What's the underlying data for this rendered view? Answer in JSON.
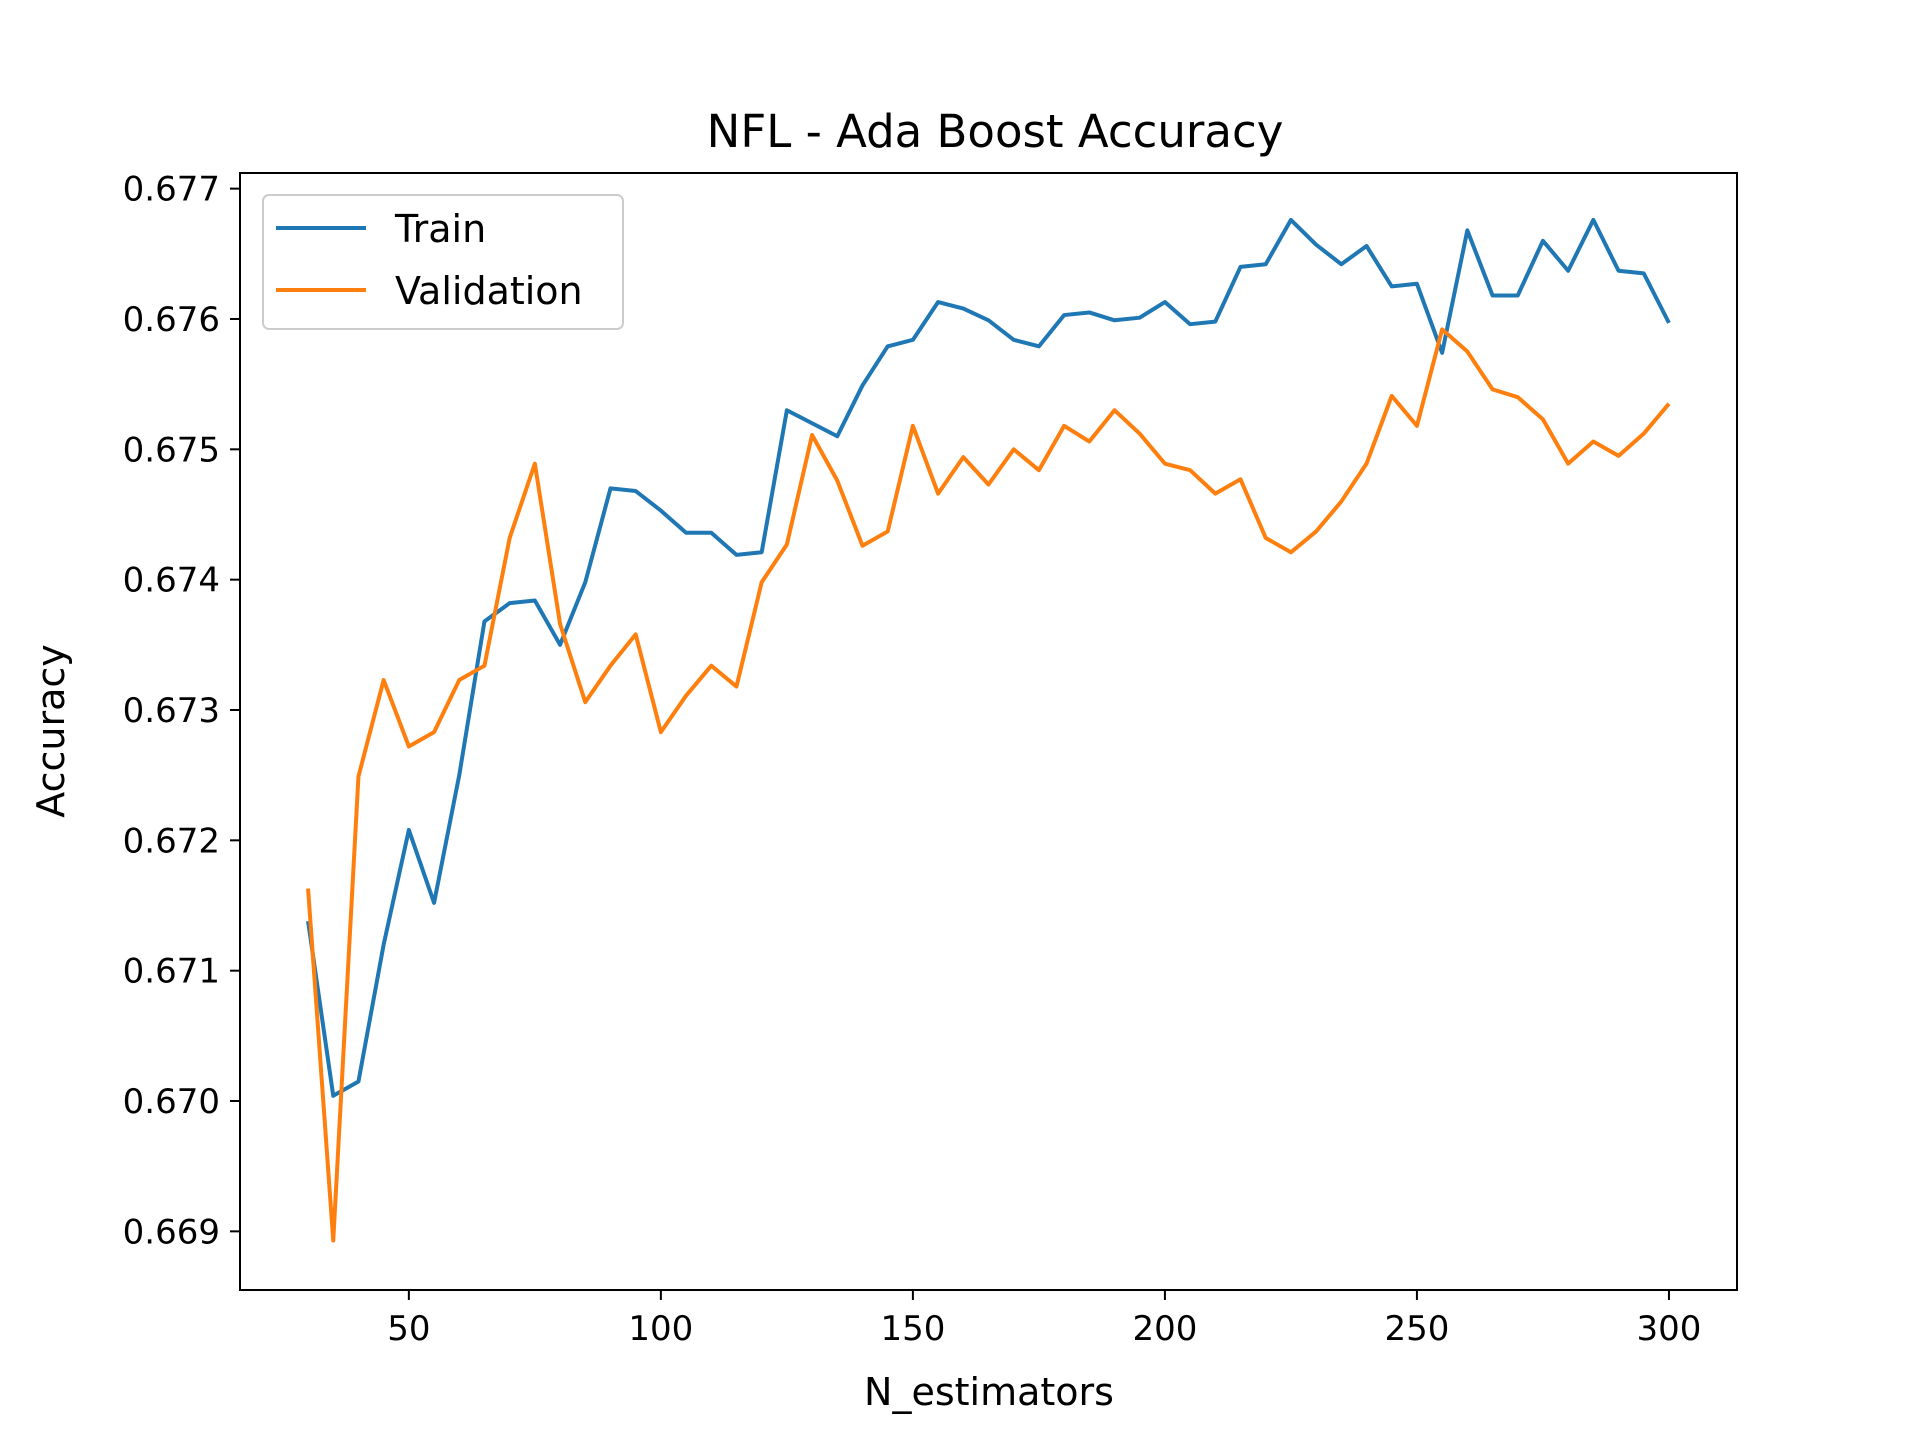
{
  "chart_data": {
    "type": "line",
    "title": "NFL - Ada Boost Accuracy",
    "xlabel": "N_estimators",
    "ylabel": "Accuracy",
    "xlim": [
      16.5,
      313.5
    ],
    "ylim": [
      0.66855,
      0.67712
    ],
    "xticks": [
      50,
      100,
      150,
      200,
      250,
      300
    ],
    "xtick_labels": [
      "50",
      "100",
      "150",
      "200",
      "250",
      "300"
    ],
    "yticks": [
      0.669,
      0.67,
      0.671,
      0.672,
      0.673,
      0.674,
      0.675,
      0.676,
      0.677
    ],
    "ytick_labels": [
      "0.669",
      "0.670",
      "0.671",
      "0.672",
      "0.673",
      "0.674",
      "0.675",
      "0.676",
      "0.677"
    ],
    "grid": false,
    "legend_position": "top-left",
    "x": [
      30,
      35,
      40,
      45,
      50,
      55,
      60,
      65,
      70,
      75,
      80,
      85,
      90,
      95,
      100,
      105,
      110,
      115,
      120,
      125,
      130,
      135,
      140,
      145,
      150,
      155,
      160,
      165,
      170,
      175,
      180,
      185,
      190,
      195,
      200,
      205,
      210,
      215,
      220,
      225,
      230,
      235,
      240,
      245,
      250,
      255,
      260,
      265,
      270,
      275,
      280,
      285,
      290,
      295,
      300
    ],
    "series": [
      {
        "name": "Train",
        "color": "#1f77b4",
        "values": [
          0.67138,
          0.67004,
          0.67015,
          0.6712,
          0.67208,
          0.67152,
          0.6725,
          0.67368,
          0.67382,
          0.67384,
          0.6735,
          0.67398,
          0.6747,
          0.67468,
          0.67453,
          0.67436,
          0.67436,
          0.67419,
          0.67421,
          0.6753,
          0.6752,
          0.6751,
          0.67549,
          0.67579,
          0.67584,
          0.67613,
          0.67608,
          0.67599,
          0.67584,
          0.67579,
          0.67603,
          0.67605,
          0.67599,
          0.67601,
          0.67613,
          0.67596,
          0.67598,
          0.6764,
          0.67642,
          0.67676,
          0.67657,
          0.67642,
          0.67656,
          0.67625,
          0.67627,
          0.67574,
          0.67668,
          0.67618,
          0.67618,
          0.6766,
          0.67637,
          0.67676,
          0.67637,
          0.67635,
          0.67597
        ]
      },
      {
        "name": "Validation",
        "color": "#ff7f0e",
        "values": [
          0.67163,
          0.66893,
          0.67249,
          0.67323,
          0.67272,
          0.67283,
          0.67323,
          0.67334,
          0.67432,
          0.67489,
          0.67366,
          0.67306,
          0.67334,
          0.67358,
          0.67283,
          0.67311,
          0.67334,
          0.67318,
          0.67398,
          0.67427,
          0.67511,
          0.67476,
          0.67426,
          0.67437,
          0.67518,
          0.67466,
          0.67494,
          0.67473,
          0.675,
          0.67484,
          0.67518,
          0.67506,
          0.6753,
          0.67512,
          0.67489,
          0.67484,
          0.67466,
          0.67477,
          0.67432,
          0.67421,
          0.67437,
          0.6746,
          0.67489,
          0.67541,
          0.67518,
          0.67592,
          0.67575,
          0.67546,
          0.6754,
          0.67523,
          0.67489,
          0.67506,
          0.67495,
          0.67512,
          0.67535
        ]
      }
    ]
  }
}
